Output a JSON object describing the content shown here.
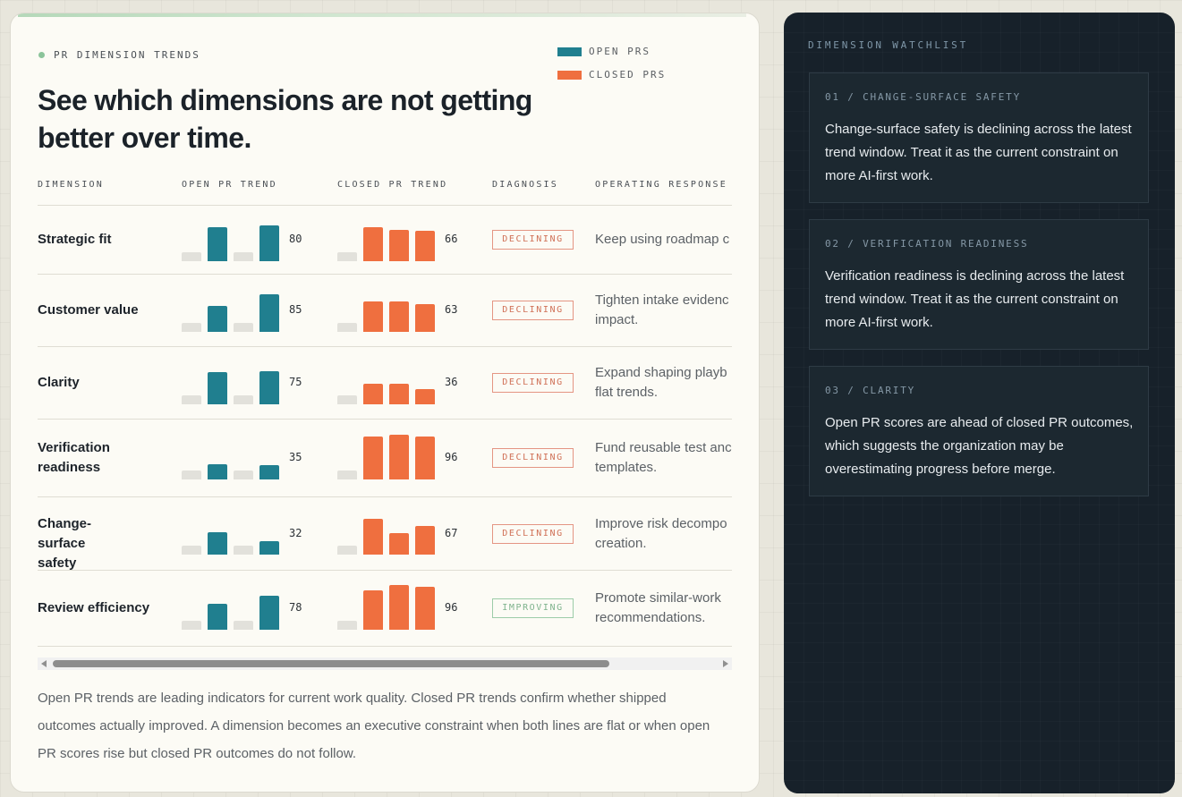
{
  "header": {
    "eyebrow": "PR DIMENSION TRENDS",
    "headline": "See which dimensions are not getting better over time."
  },
  "legend": [
    {
      "label": "OPEN PRS",
      "color": "#207f8f"
    },
    {
      "label": "CLOSED PRS",
      "color": "#ef6f3f"
    }
  ],
  "columns": {
    "dimension": "DIMENSION",
    "open_trend": "OPEN PR TREND",
    "closed_trend": "CLOSED PR TREND",
    "diagnosis": "DIAGNOSIS",
    "response": "OPERATING RESPONSE"
  },
  "rows": [
    {
      "dimension": "Strategic fit",
      "open_score": "80",
      "closed_score": "66",
      "diagnosis": "DECLINING",
      "diagnosis_status": "declining",
      "response": "Keep using roadmap c"
    },
    {
      "dimension": "Customer value",
      "open_score": "85",
      "closed_score": "63",
      "diagnosis": "DECLINING",
      "diagnosis_status": "declining",
      "response": "Tighten intake evidenc\nimpact."
    },
    {
      "dimension": "Clarity",
      "open_score": "75",
      "closed_score": "36",
      "diagnosis": "DECLINING",
      "diagnosis_status": "declining",
      "response": "Expand shaping playb\nflat trends."
    },
    {
      "dimension": "Verification readiness",
      "open_score": "35",
      "closed_score": "96",
      "diagnosis": "DECLINING",
      "diagnosis_status": "declining",
      "response": "Fund reusable test anc\ntemplates."
    },
    {
      "dimension": "Change-surface safety",
      "open_score": "32",
      "closed_score": "67",
      "diagnosis": "DECLINING",
      "diagnosis_status": "declining",
      "response": "Improve risk decompo\ncreation."
    },
    {
      "dimension": "Review efficiency",
      "open_score": "78",
      "closed_score": "96",
      "diagnosis": "IMPROVING",
      "diagnosis_status": "improving",
      "response": "Promote similar-work\nrecommendations."
    }
  ],
  "footnote": "Open PR trends are leading indicators for current work quality. Closed PR trends confirm whether shipped outcomes actually improved. A dimension becomes an executive constraint when both lines are flat or when open PR scores rise but closed PR outcomes do not follow.",
  "watchlist": {
    "title": "DIMENSION WATCHLIST",
    "items": [
      {
        "label": "01 / CHANGE-SURFACE SAFETY",
        "body": "Change-surface safety is declining across the latest trend window. Treat it as the current constraint on more AI-first work."
      },
      {
        "label": "02 / VERIFICATION READINESS",
        "body": "Verification readiness is declining across the latest trend window. Treat it as the current constraint on more AI-first work."
      },
      {
        "label": "03 / CLARITY",
        "body": "Open PR scores are ahead of closed PR outcomes, which suggests the organization may be overestimating progress before merge."
      }
    ]
  }
}
